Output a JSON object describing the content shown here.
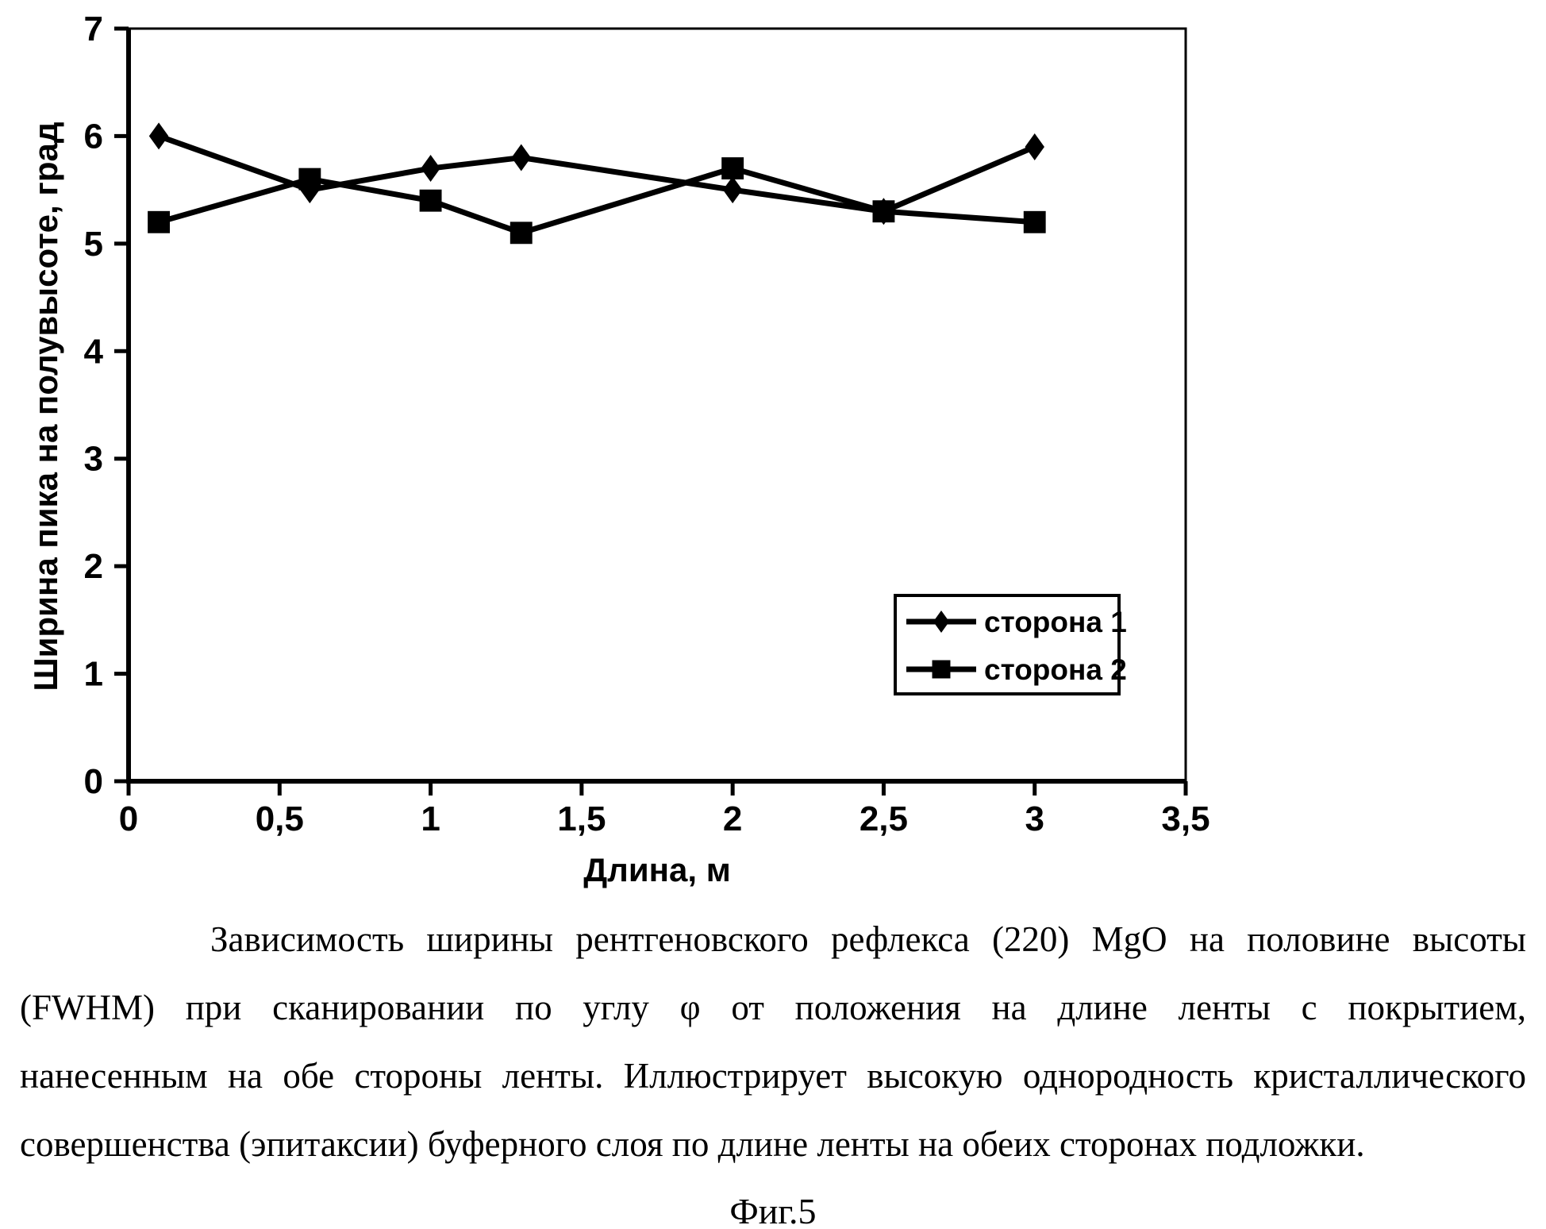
{
  "chart_data": {
    "type": "line",
    "title": "",
    "xlabel": "Длина, м",
    "ylabel": "Ширина пика на полувысоте, град",
    "xlim": [
      0,
      3.5
    ],
    "ylim": [
      0,
      7
    ],
    "grid": false,
    "x_tick_values": [
      0,
      0.5,
      1,
      1.5,
      2,
      2.5,
      3,
      3.5
    ],
    "x_tick_labels": [
      "0",
      "0,5",
      "1",
      "1,5",
      "2",
      "2,5",
      "3",
      "3,5"
    ],
    "y_tick_values": [
      0,
      1,
      2,
      3,
      4,
      5,
      6,
      7
    ],
    "y_tick_labels": [
      "0",
      "1",
      "2",
      "3",
      "4",
      "5",
      "6",
      "7"
    ],
    "x": [
      0.1,
      0.6,
      1.0,
      1.3,
      2.0,
      2.5,
      3.0
    ],
    "series": [
      {
        "name": "сторона 1",
        "marker": "diamond",
        "values": [
          6.0,
          5.5,
          5.7,
          5.8,
          5.5,
          5.3,
          5.9
        ]
      },
      {
        "name": "сторона 2",
        "marker": "square",
        "values": [
          5.2,
          5.6,
          5.4,
          5.1,
          5.7,
          5.3,
          5.2
        ]
      }
    ],
    "legend_position": "lower right",
    "line_color": "#000000",
    "background_color": "#ffffff"
  },
  "caption": {
    "lines": [
      "Зависимость ширины рентгеновского рефлекса (220) MgO на половине высоты",
      "(FWHM) при сканировании по углу φ от положения на длине ленты с покрытием,",
      "нанесенным на обе стороны ленты. Иллюстрирует высокую однородность кристаллического",
      "совершенства (эпитаксии) буферного слоя по длине ленты на обеих сторонах подложки."
    ],
    "figure_label": "Фиг.5"
  }
}
